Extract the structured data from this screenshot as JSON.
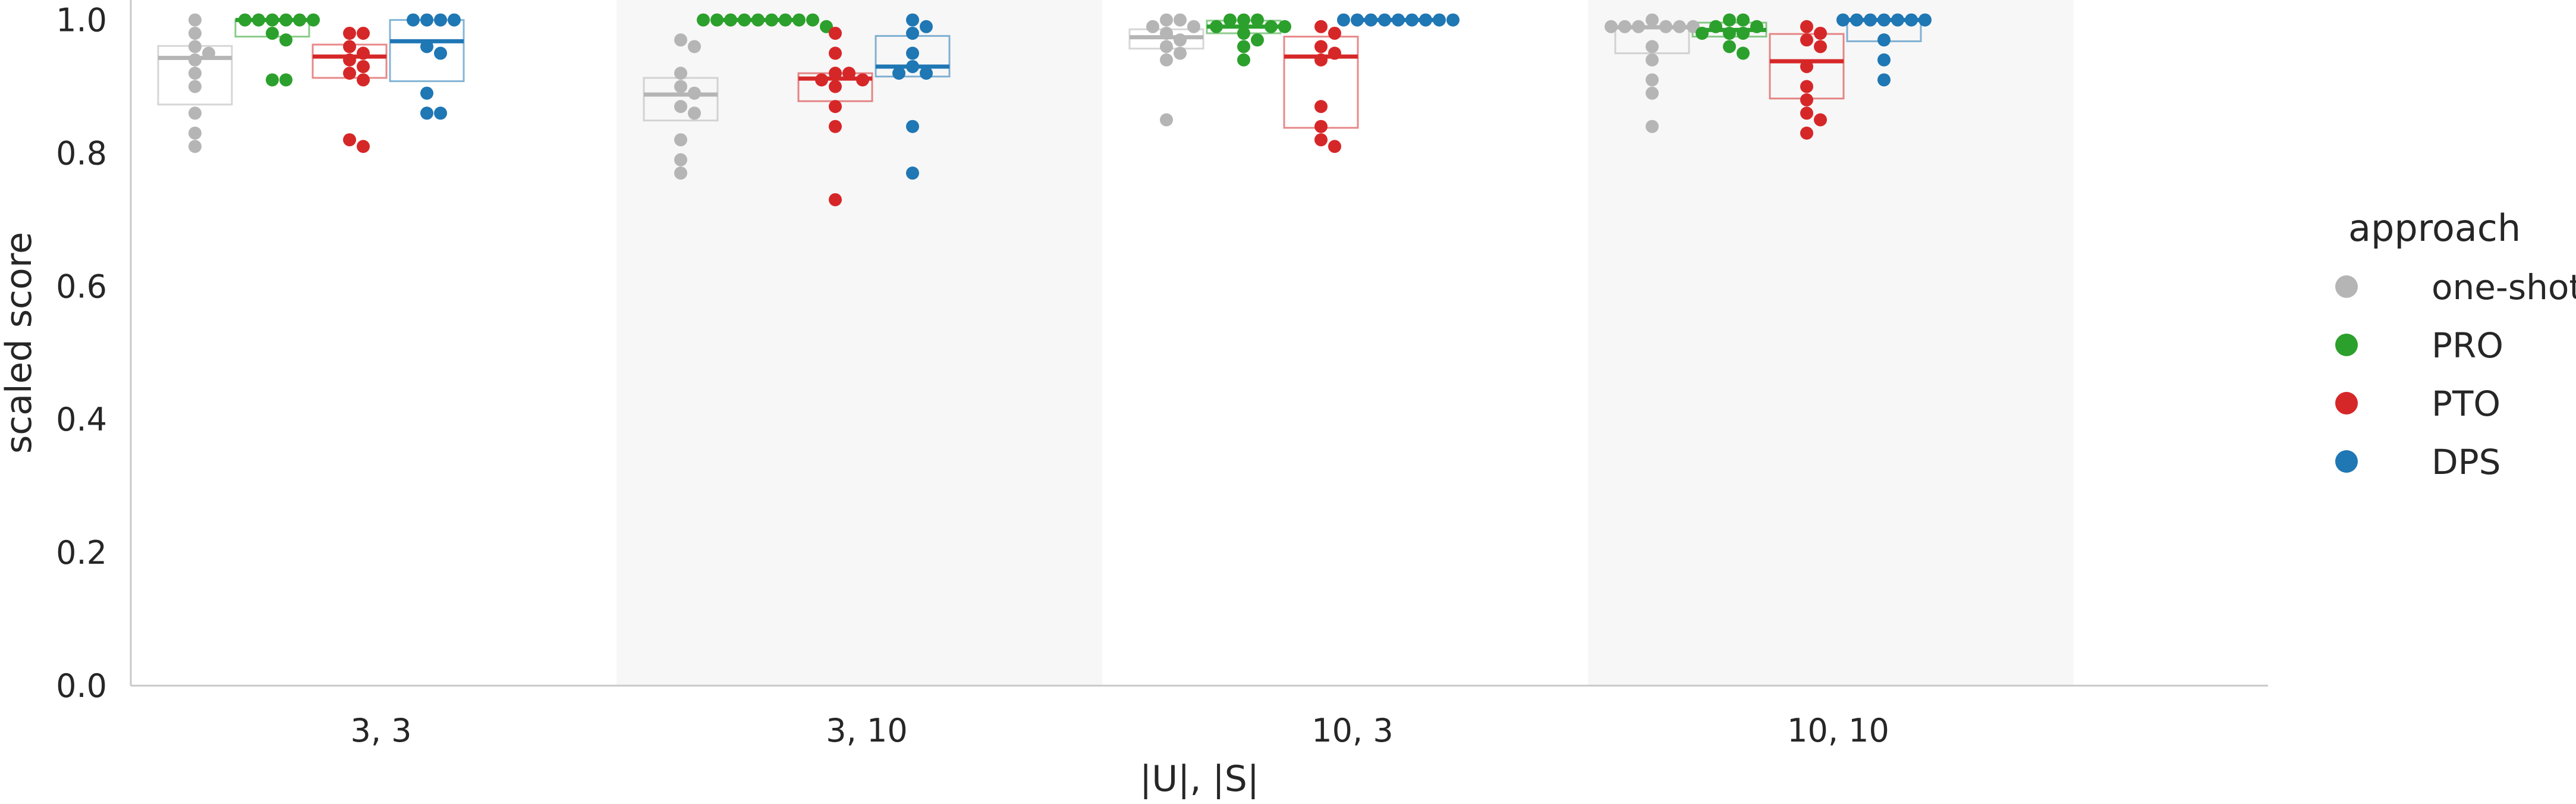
{
  "chart_data": {
    "type": "box+swarm",
    "xlabel": "|U|, |S|",
    "ylabel": "scaled score",
    "ylim": [
      0.0,
      1.03
    ],
    "yticks": [
      0.0,
      0.2,
      0.4,
      0.6,
      0.8,
      1.0
    ],
    "ytick_labels": [
      "0.0",
      "0.2",
      "0.4",
      "0.6",
      "0.8",
      "1.0"
    ],
    "categories": [
      "3, 3",
      "3, 10",
      "10, 3",
      "10, 10"
    ],
    "shaded_categories": [
      1,
      3
    ],
    "grid": false,
    "legend": {
      "title": "approach",
      "placement": "right",
      "entries": [
        "one-shot",
        "PRO",
        "PTO",
        "DPS"
      ]
    },
    "series": [
      {
        "name": "one-shot",
        "color": "#b5b5b5",
        "box": [
          {
            "q1": 0.873,
            "median": 0.943,
            "q3": 0.961
          },
          {
            "q1": 0.849,
            "median": 0.888,
            "q3": 0.913
          },
          {
            "q1": 0.957,
            "median": 0.974,
            "q3": 0.986
          },
          {
            "q1": 0.95,
            "median": 0.989,
            "q3": 0.99
          }
        ],
        "points": [
          [
            1.0,
            0.98,
            0.96,
            0.95,
            0.94,
            0.92,
            0.9,
            0.86,
            0.83,
            0.81
          ],
          [
            0.97,
            0.96,
            0.92,
            0.9,
            0.89,
            0.87,
            0.86,
            0.82,
            0.79,
            0.77
          ],
          [
            1.0,
            1.0,
            0.99,
            0.99,
            0.98,
            0.97,
            0.96,
            0.95,
            0.94,
            0.85
          ],
          [
            1.0,
            0.99,
            0.99,
            0.99,
            0.99,
            0.99,
            0.99,
            0.96,
            0.94,
            0.91,
            0.89,
            0.84
          ]
        ]
      },
      {
        "name": "PRO",
        "color": "#2ca02c",
        "box": [
          {
            "q1": 0.975,
            "median": 1.0,
            "q3": 1.0
          },
          {
            "q1": 1.0,
            "median": 1.0,
            "q3": 1.0
          },
          {
            "q1": 0.98,
            "median": 0.99,
            "q3": 0.999
          },
          {
            "q1": 0.975,
            "median": 0.985,
            "q3": 0.996
          }
        ],
        "points": [
          [
            1.0,
            1.0,
            1.0,
            1.0,
            1.0,
            1.0,
            0.98,
            0.97,
            0.91,
            0.91
          ],
          [
            1.0,
            1.0,
            1.0,
            1.0,
            1.0,
            1.0,
            1.0,
            1.0,
            1.0,
            0.99
          ],
          [
            1.0,
            1.0,
            1.0,
            0.99,
            0.99,
            0.99,
            0.98,
            0.97,
            0.96,
            0.94
          ],
          [
            1.0,
            1.0,
            0.99,
            0.99,
            0.98,
            0.98,
            0.98,
            0.96,
            0.95
          ]
        ]
      },
      {
        "name": "PTO",
        "color": "#d62728",
        "box": [
          {
            "q1": 0.913,
            "median": 0.945,
            "q3": 0.963
          },
          {
            "q1": 0.878,
            "median": 0.912,
            "q3": 0.92
          },
          {
            "q1": 0.838,
            "median": 0.945,
            "q3": 0.975
          },
          {
            "q1": 0.882,
            "median": 0.938,
            "q3": 0.979
          }
        ],
        "points": [
          [
            0.98,
            0.98,
            0.96,
            0.95,
            0.94,
            0.93,
            0.92,
            0.91,
            0.82,
            0.81
          ],
          [
            0.98,
            0.95,
            0.92,
            0.92,
            0.91,
            0.91,
            0.9,
            0.87,
            0.84,
            0.73
          ],
          [
            0.99,
            0.98,
            0.96,
            0.95,
            0.94,
            0.87,
            0.84,
            0.82,
            0.81
          ],
          [
            0.99,
            0.98,
            0.97,
            0.96,
            0.93,
            0.9,
            0.88,
            0.86,
            0.85,
            0.83
          ]
        ]
      },
      {
        "name": "DPS",
        "color": "#1f77b4",
        "box": [
          {
            "q1": 0.908,
            "median": 0.968,
            "q3": 1.0
          },
          {
            "q1": 0.915,
            "median": 0.93,
            "q3": 0.976
          },
          {
            "q1": 1.0,
            "median": 1.0,
            "q3": 1.0
          },
          {
            "q1": 0.968,
            "median": 1.0,
            "q3": 1.0
          }
        ],
        "points": [
          [
            1.0,
            1.0,
            1.0,
            1.0,
            0.96,
            0.95,
            0.89,
            0.86,
            0.86
          ],
          [
            1.0,
            0.99,
            0.98,
            0.95,
            0.93,
            0.92,
            0.92,
            0.84,
            0.77
          ],
          [
            1.0,
            1.0,
            1.0,
            1.0,
            1.0,
            1.0,
            1.0,
            1.0,
            1.0
          ],
          [
            1.0,
            1.0,
            1.0,
            1.0,
            1.0,
            1.0,
            1.0,
            0.97,
            0.94,
            0.91
          ]
        ]
      }
    ]
  }
}
